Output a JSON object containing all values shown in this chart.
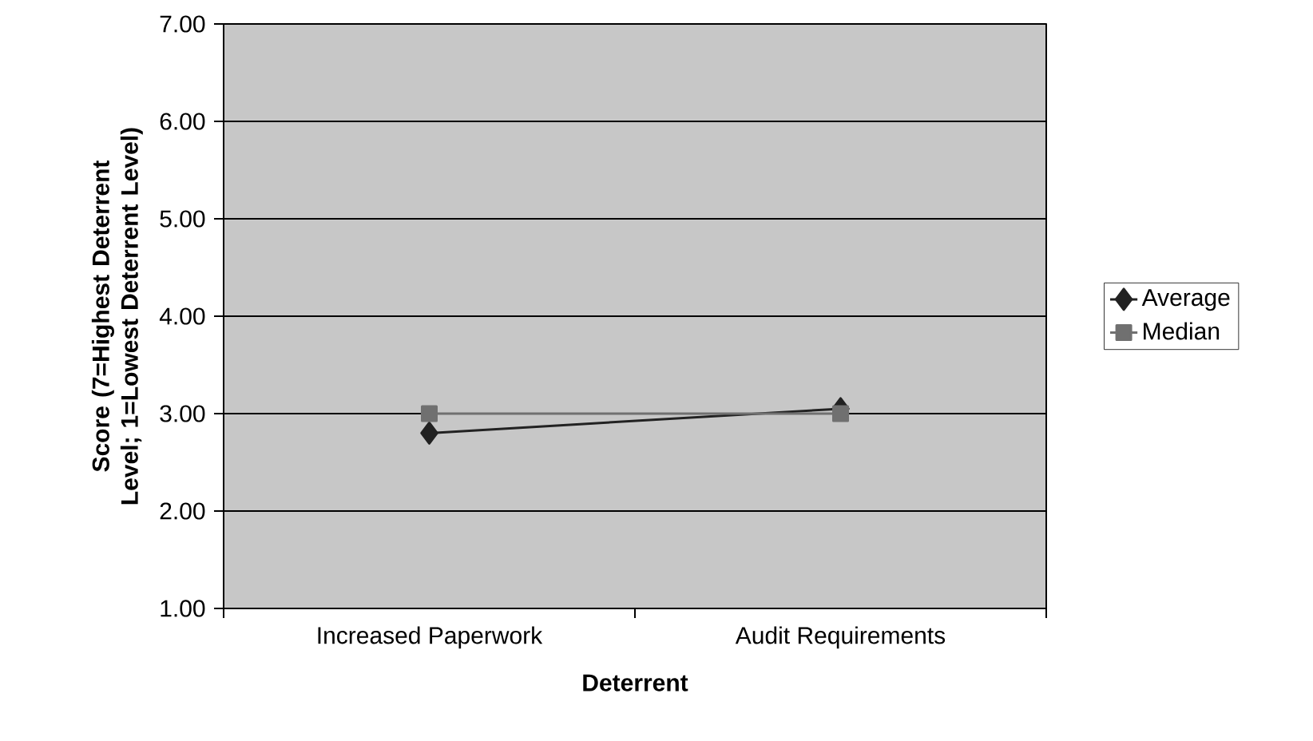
{
  "chart_data": {
    "type": "line",
    "xlabel": "Deterrent",
    "ylabel": "Score (7=Highest Deterrent Level; 1=Lowest Deterrent Level)",
    "categories": [
      "Increased Paperwork",
      "Audit Requirements"
    ],
    "series": [
      {
        "name": "Average",
        "color": "#222222",
        "marker": "diamond",
        "values": [
          2.8,
          3.05
        ]
      },
      {
        "name": "Median",
        "color": "#707070",
        "marker": "square",
        "values": [
          3,
          3
        ]
      }
    ],
    "ylim": [
      1,
      7
    ],
    "yticks": [
      {
        "value": 1,
        "label": "1.00"
      },
      {
        "value": 2,
        "label": "2.00"
      },
      {
        "value": 3,
        "label": "3.00"
      },
      {
        "value": 4,
        "label": "4.00"
      },
      {
        "value": 5,
        "label": "5.00"
      },
      {
        "value": 6,
        "label": "6.00"
      },
      {
        "value": 7,
        "label": "7.00"
      }
    ],
    "grid": "y",
    "legend": "right",
    "line_style": "solid"
  }
}
